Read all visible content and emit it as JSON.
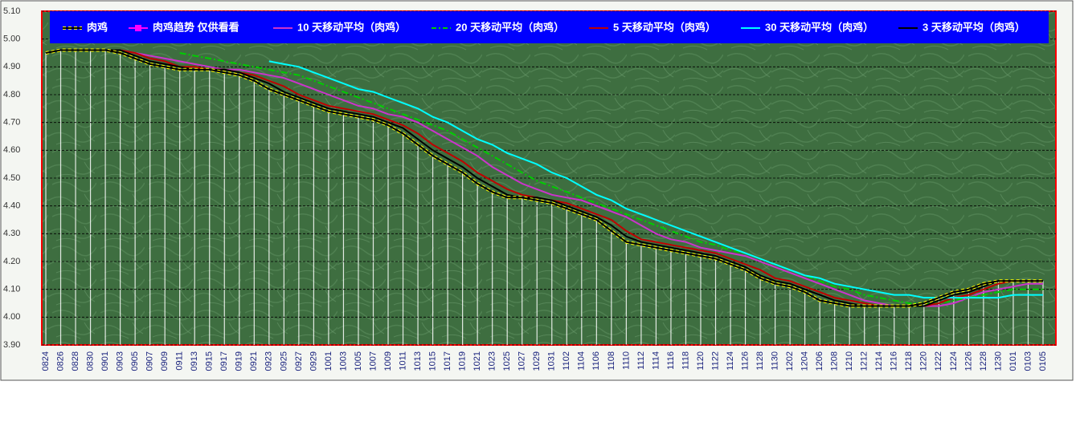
{
  "chart_data": {
    "type": "line",
    "categories": [
      "0824",
      "0826",
      "0828",
      "0830",
      "0901",
      "0903",
      "0905",
      "0907",
      "0909",
      "0911",
      "0913",
      "0915",
      "0917",
      "0919",
      "0921",
      "0923",
      "0925",
      "0927",
      "0929",
      "1001",
      "1003",
      "1005",
      "1007",
      "1009",
      "1011",
      "1013",
      "1015",
      "1017",
      "1019",
      "1021",
      "1023",
      "1025",
      "1027",
      "1029",
      "1031",
      "1102",
      "1104",
      "1106",
      "1108",
      "1110",
      "1112",
      "1114",
      "1116",
      "1118",
      "1120",
      "1122",
      "1124",
      "1126",
      "1128",
      "1130",
      "1202",
      "1204",
      "1206",
      "1208",
      "1210",
      "1212",
      "1214",
      "1216",
      "1218",
      "1220",
      "1222",
      "1224",
      "1226",
      "1228",
      "1230",
      "0101",
      "0103",
      "0105"
    ],
    "ylim": [
      3.9,
      5.1
    ],
    "yticks": [
      {
        "value": 3.9,
        "label": "3.90"
      },
      {
        "value": 4.0,
        "label": "4.00"
      },
      {
        "value": 4.1,
        "label": "4.10"
      },
      {
        "value": 4.2,
        "label": "4.20"
      },
      {
        "value": 4.3,
        "label": "4.30"
      },
      {
        "value": 4.4,
        "label": "4.40"
      },
      {
        "value": 4.5,
        "label": "4.50"
      },
      {
        "value": 4.6,
        "label": "4.60"
      },
      {
        "value": 4.7,
        "label": "4.70"
      },
      {
        "value": 4.8,
        "label": "4.80"
      },
      {
        "value": 4.9,
        "label": "4.90"
      },
      {
        "value": 5.0,
        "label": "5.00"
      },
      {
        "value": 5.1,
        "label": "5.10"
      }
    ],
    "grid": true,
    "series": [
      {
        "name": "肉鸡",
        "color": "#000000",
        "outline": "#ffff00",
        "values": [
          4.95,
          4.96,
          4.96,
          4.96,
          4.96,
          4.95,
          4.93,
          4.91,
          4.9,
          4.89,
          4.89,
          4.89,
          4.88,
          4.87,
          4.85,
          4.82,
          4.8,
          4.78,
          4.76,
          4.74,
          4.73,
          4.72,
          4.71,
          4.69,
          4.66,
          4.62,
          4.58,
          4.55,
          4.52,
          4.48,
          4.45,
          4.43,
          4.43,
          4.42,
          4.41,
          4.39,
          4.37,
          4.35,
          4.31,
          4.27,
          4.26,
          4.25,
          4.24,
          4.23,
          4.22,
          4.21,
          4.19,
          4.17,
          4.14,
          4.12,
          4.11,
          4.09,
          4.06,
          4.05,
          4.04,
          4.04,
          4.04,
          4.04,
          4.04,
          4.05,
          4.07,
          4.09,
          4.1,
          4.12,
          4.13,
          4.13,
          4.13,
          4.13
        ]
      },
      {
        "name": "肉鸡趋势  仅供看看",
        "color": "#ff00ff",
        "style": "column",
        "values": [
          4.95,
          4.96,
          4.96,
          4.96,
          4.96,
          4.95,
          4.93,
          4.91,
          4.9,
          4.89,
          4.89,
          4.89,
          4.88,
          4.87,
          4.85,
          4.82,
          4.8,
          4.78,
          4.76,
          4.74,
          4.73,
          4.72,
          4.71,
          4.69,
          4.66,
          4.62,
          4.58,
          4.55,
          4.52,
          4.48,
          4.45,
          4.43,
          4.43,
          4.42,
          4.41,
          4.39,
          4.37,
          4.35,
          4.31,
          4.27,
          4.26,
          4.25,
          4.24,
          4.23,
          4.22,
          4.21,
          4.19,
          4.17,
          4.14,
          4.12,
          4.11,
          4.09,
          4.06,
          4.05,
          4.04,
          4.04,
          4.04,
          4.04,
          4.04,
          4.05,
          4.07,
          4.09,
          4.1,
          4.12,
          4.13,
          4.13,
          4.13,
          4.13
        ]
      },
      {
        "name": "10 天移动平均（肉鸡）",
        "color": "#cc33cc",
        "values": [
          null,
          null,
          null,
          null,
          4.96,
          4.96,
          4.95,
          4.94,
          4.93,
          4.92,
          4.91,
          4.9,
          4.89,
          4.89,
          4.88,
          4.87,
          4.86,
          4.84,
          4.82,
          4.8,
          4.78,
          4.76,
          4.75,
          4.73,
          4.72,
          4.7,
          4.67,
          4.64,
          4.61,
          4.58,
          4.54,
          4.51,
          4.48,
          4.46,
          4.44,
          4.43,
          4.42,
          4.4,
          4.38,
          4.36,
          4.33,
          4.3,
          4.28,
          4.27,
          4.25,
          4.24,
          4.23,
          4.22,
          4.2,
          4.18,
          4.16,
          4.14,
          4.12,
          4.1,
          4.08,
          4.06,
          4.05,
          4.04,
          4.04,
          4.04,
          4.04,
          4.05,
          4.07,
          4.09,
          4.1,
          4.11,
          4.12,
          4.12
        ]
      },
      {
        "name": "20 天移动平均（肉鸡）",
        "color": "#00cc00",
        "dash": true,
        "values": [
          null,
          null,
          null,
          null,
          null,
          null,
          null,
          null,
          null,
          4.95,
          4.94,
          4.93,
          4.92,
          4.91,
          4.9,
          4.89,
          4.88,
          4.87,
          4.85,
          4.83,
          4.81,
          4.79,
          4.77,
          4.75,
          4.73,
          4.71,
          4.69,
          4.67,
          4.64,
          4.61,
          4.58,
          4.55,
          4.52,
          4.49,
          4.47,
          4.45,
          4.43,
          4.41,
          4.39,
          4.37,
          4.35,
          4.33,
          4.31,
          4.29,
          4.27,
          4.26,
          4.24,
          4.23,
          4.21,
          4.19,
          4.17,
          4.15,
          4.13,
          4.11,
          4.1,
          4.08,
          4.07,
          4.06,
          4.05,
          4.05,
          4.05,
          4.06,
          4.07,
          4.08,
          4.09,
          4.1,
          4.1,
          4.1
        ]
      },
      {
        "name": "5 天移动平均（肉鸡）",
        "color": "#c00000",
        "values": [
          null,
          null,
          4.96,
          4.96,
          4.96,
          4.96,
          4.95,
          4.93,
          4.92,
          4.9,
          4.9,
          4.89,
          4.89,
          4.88,
          4.87,
          4.85,
          4.83,
          4.8,
          4.78,
          4.76,
          4.75,
          4.74,
          4.73,
          4.71,
          4.69,
          4.66,
          4.62,
          4.59,
          4.56,
          4.52,
          4.49,
          4.46,
          4.44,
          4.43,
          4.42,
          4.41,
          4.39,
          4.37,
          4.35,
          4.31,
          4.28,
          4.27,
          4.26,
          4.25,
          4.24,
          4.23,
          4.21,
          4.19,
          4.17,
          4.14,
          4.13,
          4.11,
          4.09,
          4.07,
          4.06,
          4.05,
          4.04,
          4.04,
          4.04,
          4.04,
          4.05,
          4.07,
          4.08,
          4.1,
          4.12,
          4.13,
          4.13,
          4.13
        ]
      },
      {
        "name": "30 天移动平均（肉鸡）",
        "color": "#00ffff",
        "values": [
          null,
          null,
          null,
          null,
          null,
          null,
          null,
          null,
          null,
          null,
          null,
          null,
          null,
          null,
          null,
          4.92,
          4.91,
          4.9,
          4.88,
          4.86,
          4.84,
          4.82,
          4.81,
          4.79,
          4.77,
          4.75,
          4.72,
          4.7,
          4.67,
          4.64,
          4.62,
          4.59,
          4.57,
          4.55,
          4.52,
          4.5,
          4.47,
          4.44,
          4.42,
          4.39,
          4.37,
          4.35,
          4.33,
          4.31,
          4.29,
          4.27,
          4.25,
          4.23,
          4.21,
          4.19,
          4.17,
          4.15,
          4.14,
          4.12,
          4.11,
          4.1,
          4.09,
          4.08,
          4.08,
          4.07,
          4.07,
          4.07,
          4.07,
          4.07,
          4.07,
          4.08,
          4.08,
          4.08
        ]
      },
      {
        "name": "3 天移动平均（肉鸡）",
        "color": "#000000",
        "values": [
          null,
          4.96,
          4.96,
          4.96,
          4.96,
          4.96,
          4.94,
          4.92,
          4.91,
          4.9,
          4.89,
          4.89,
          4.89,
          4.88,
          4.86,
          4.84,
          4.81,
          4.79,
          4.77,
          4.75,
          4.74,
          4.73,
          4.72,
          4.7,
          4.68,
          4.64,
          4.6,
          4.57,
          4.54,
          4.5,
          4.47,
          4.44,
          4.43,
          4.43,
          4.42,
          4.4,
          4.38,
          4.36,
          4.33,
          4.29,
          4.27,
          4.26,
          4.25,
          4.24,
          4.23,
          4.22,
          4.2,
          4.18,
          4.15,
          4.13,
          4.12,
          4.1,
          4.08,
          4.06,
          4.05,
          4.04,
          4.04,
          4.04,
          4.04,
          4.04,
          4.06,
          4.08,
          4.09,
          4.11,
          4.13,
          4.13,
          4.13,
          4.13
        ]
      }
    ]
  }
}
